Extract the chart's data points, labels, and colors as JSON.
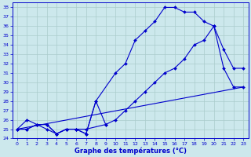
{
  "xlabel": "Graphe des températures (°C)",
  "bg_color": "#cce8ec",
  "line_color": "#0000cc",
  "grid_color": "#aacccc",
  "ylim": [
    24,
    38.5
  ],
  "xlim": [
    -0.5,
    23.5
  ],
  "yticks": [
    24,
    25,
    26,
    27,
    28,
    29,
    30,
    31,
    32,
    33,
    34,
    35,
    36,
    37,
    38
  ],
  "xticks": [
    0,
    1,
    2,
    3,
    4,
    5,
    6,
    7,
    8,
    9,
    10,
    11,
    12,
    13,
    14,
    15,
    16,
    17,
    18,
    19,
    20,
    21,
    22,
    23
  ],
  "line1_x": [
    0,
    1,
    2,
    3,
    4,
    5,
    6,
    7,
    8,
    10,
    11,
    12,
    13,
    14,
    15,
    16,
    17,
    18,
    19,
    20,
    21,
    22,
    23
  ],
  "line1_y": [
    25.0,
    26.0,
    25.5,
    25.5,
    24.5,
    25.0,
    25.0,
    24.5,
    28.0,
    31.0,
    32.0,
    34.5,
    35.5,
    36.5,
    38.0,
    38.0,
    37.5,
    37.5,
    36.5,
    36.0,
    31.5,
    29.5,
    29.5
  ],
  "line2_x": [
    0,
    1,
    2,
    3,
    4,
    5,
    6,
    7,
    9,
    10,
    11,
    12,
    13,
    14,
    15,
    16,
    17,
    18,
    19,
    20,
    21,
    22,
    23
  ],
  "line2_y": [
    25.0,
    25.0,
    25.5,
    25.0,
    24.5,
    25.0,
    25.0,
    25.0,
    25.5,
    26.0,
    27.0,
    28.0,
    29.0,
    30.0,
    31.0,
    31.5,
    32.5,
    34.0,
    34.5,
    36.0,
    33.5,
    31.5,
    31.5
  ],
  "line3_x": [
    0,
    23
  ],
  "line3_y": [
    25.0,
    29.5
  ],
  "line4_x": [
    0,
    1,
    2,
    3,
    4,
    5,
    6,
    7,
    8,
    9
  ],
  "line4_y": [
    25.0,
    25.0,
    25.5,
    25.5,
    24.5,
    25.0,
    25.0,
    24.5,
    28.0,
    25.5
  ]
}
